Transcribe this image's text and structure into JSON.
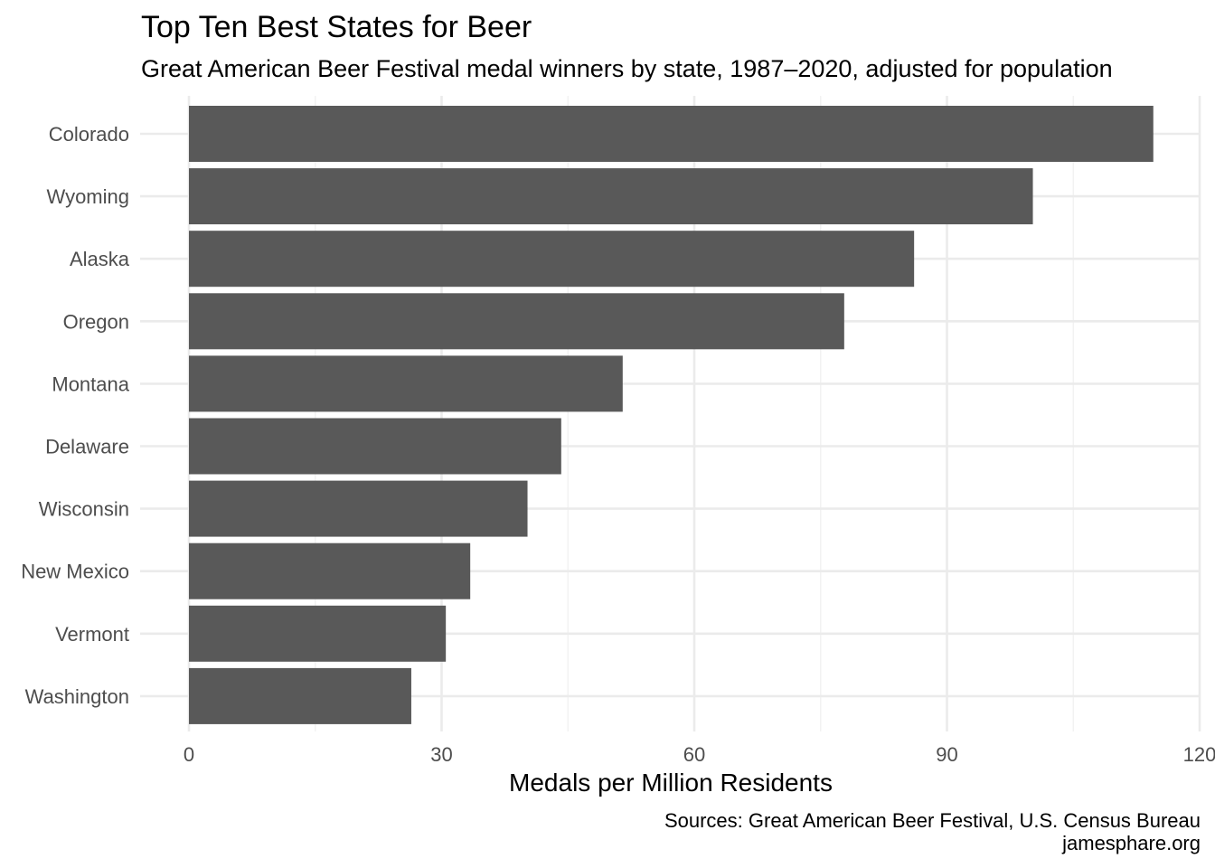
{
  "chart_data": {
    "type": "bar",
    "orientation": "horizontal",
    "title": "Top Ten Best States for Beer",
    "subtitle": "Great American Beer Festival medal winners by state, 1987–2020, adjusted for population",
    "xlabel": "Medals per Million Residents",
    "ylabel": "",
    "xlim": [
      0,
      120
    ],
    "xticks": [
      0,
      30,
      60,
      90,
      120
    ],
    "grid": true,
    "categories": [
      "Colorado",
      "Wyoming",
      "Alaska",
      "Oregon",
      "Montana",
      "Delaware",
      "Wisconsin",
      "New Mexico",
      "Vermont",
      "Washington"
    ],
    "values": [
      114.5,
      100.2,
      86.1,
      77.8,
      51.5,
      44.2,
      40.2,
      33.4,
      30.5,
      26.4
    ],
    "bar_color": "#595959",
    "caption": [
      "Sources: Great American Beer Festival, U.S. Census Bureau",
      "jamesphare.org"
    ]
  }
}
